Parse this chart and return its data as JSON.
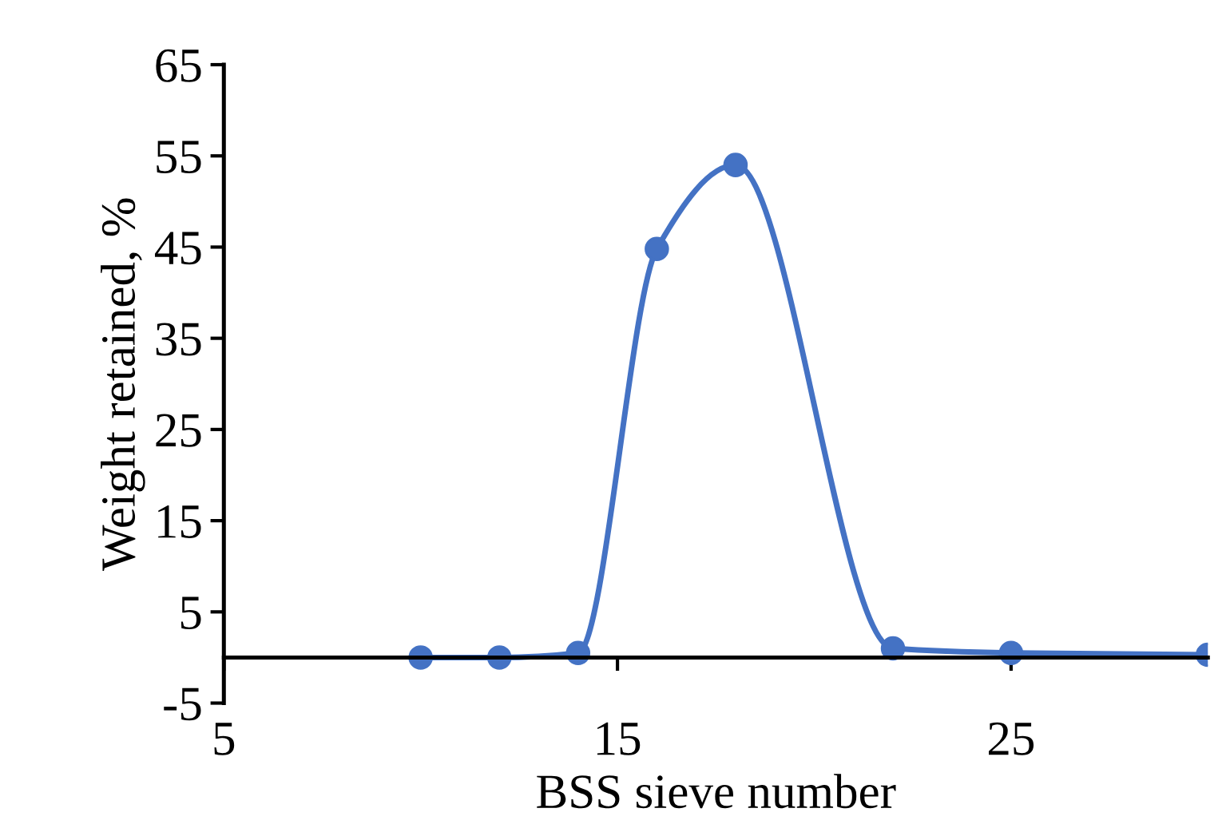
{
  "chart_data": {
    "type": "line",
    "xlabel": "BSS sieve number",
    "ylabel": "Weight retained, %",
    "x": [
      10,
      12,
      14,
      16,
      18,
      22,
      25,
      30
    ],
    "series": [
      {
        "color": "#4472c4",
        "values": [
          0,
          0,
          0.5,
          44.8,
          54,
          1,
          0.5,
          0.3
        ]
      }
    ],
    "xlim": [
      5,
      30
    ],
    "xticks": [
      5,
      15,
      25
    ],
    "ylim": [
      -5,
      65
    ],
    "yticks": [
      -5,
      5,
      15,
      25,
      35,
      45,
      55,
      65
    ],
    "marker": "circle",
    "line_style": "solid",
    "grid": false
  }
}
